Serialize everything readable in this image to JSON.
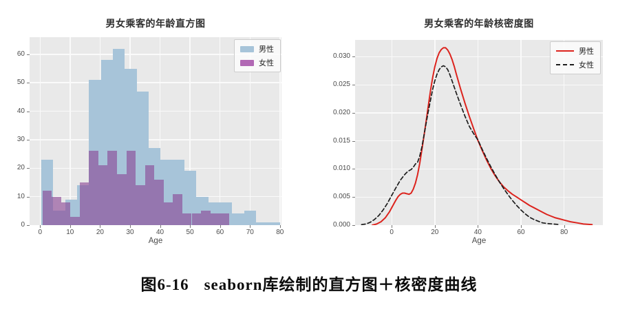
{
  "caption": {
    "number": "图6-16",
    "text": "seaborn库绘制的直方图＋核密度曲线"
  },
  "chart_data": [
    {
      "type": "histogram",
      "title": "男女乘客的年龄直方图",
      "xlabel": "Age",
      "ylabel": "",
      "xlim": [
        -3.5,
        80.5
      ],
      "ylim": [
        0,
        66
      ],
      "xticks": [
        0,
        10,
        20,
        30,
        40,
        50,
        60,
        70,
        80
      ],
      "xtick_labels": [
        "0",
        "10",
        "20",
        "30",
        "40",
        "50",
        "60",
        "70",
        "80"
      ],
      "ytick_vals": [
        0,
        10,
        20,
        30,
        40,
        50,
        60
      ],
      "ytick_labels": [
        "0",
        "10",
        "20",
        "30",
        "40",
        "50",
        "60"
      ],
      "grid": true,
      "legend_position": "upper right",
      "series": [
        {
          "name": "男性",
          "color": "#a7c4d9",
          "legend_color": "#a7c4d9",
          "bin_start": 0.42,
          "bin_width": 3.979,
          "counts": [
            23,
            5,
            9,
            14,
            51,
            58,
            62,
            55,
            47,
            27,
            23,
            23,
            19,
            10,
            8,
            8,
            4,
            5,
            1,
            1
          ]
        },
        {
          "name": "女性",
          "color": "rgba(139,69,148,0.62)",
          "legend_color": "#b168b4",
          "bin_start": 0.75,
          "bin_width": 3.1125,
          "counts": [
            12,
            10,
            8,
            3,
            15,
            26,
            21,
            26,
            18,
            26,
            14,
            21,
            16,
            8,
            11,
            4,
            4,
            5,
            4,
            4
          ]
        }
      ]
    },
    {
      "type": "line",
      "title": "男女乘客的年龄核密度图",
      "xlabel": "Age",
      "ylabel": "",
      "xlim": [
        -17,
        98
      ],
      "ylim": [
        0,
        0.033
      ],
      "xticks": [
        0,
        20,
        40,
        60,
        80
      ],
      "xtick_labels": [
        "0",
        "20",
        "40",
        "60",
        "80"
      ],
      "ytick_vals": [
        0,
        0.005,
        0.01,
        0.015,
        0.02,
        0.025,
        0.03
      ],
      "ytick_labels": [
        "0.000",
        "0.005",
        "0.010",
        "0.015",
        "0.020",
        "0.025",
        "0.030"
      ],
      "grid": true,
      "legend_position": "upper right",
      "series": [
        {
          "name": "男性",
          "color": "#dc231d",
          "dash": "solid",
          "points": [
            [
              -9,
              0.0
            ],
            [
              -7,
              0.0002
            ],
            [
              -5,
              0.0006
            ],
            [
              -3,
              0.0013
            ],
            [
              -1,
              0.0024
            ],
            [
              1,
              0.0038
            ],
            [
              2,
              0.0045
            ],
            [
              3,
              0.0051
            ],
            [
              4,
              0.0055
            ],
            [
              5,
              0.0057
            ],
            [
              6,
              0.0057
            ],
            [
              7,
              0.0056
            ],
            [
              8,
              0.0055
            ],
            [
              9,
              0.0057
            ],
            [
              10,
              0.0064
            ],
            [
              11,
              0.0075
            ],
            [
              12,
              0.009
            ],
            [
              13,
              0.011
            ],
            [
              14,
              0.0134
            ],
            [
              15,
              0.016
            ],
            [
              16,
              0.0186
            ],
            [
              17,
              0.0213
            ],
            [
              18,
              0.024
            ],
            [
              19,
              0.0263
            ],
            [
              20,
              0.0282
            ],
            [
              21,
              0.0297
            ],
            [
              22,
              0.0307
            ],
            [
              23,
              0.0313
            ],
            [
              24,
              0.0316
            ],
            [
              25,
              0.0316
            ],
            [
              26,
              0.0312
            ],
            [
              27,
              0.0305
            ],
            [
              28,
              0.0295
            ],
            [
              29,
              0.0283
            ],
            [
              30,
              0.0269
            ],
            [
              32,
              0.0242
            ],
            [
              34,
              0.0217
            ],
            [
              36,
              0.0194
            ],
            [
              38,
              0.0172
            ],
            [
              40,
              0.0151
            ],
            [
              42,
              0.0133
            ],
            [
              44,
              0.0116
            ],
            [
              46,
              0.0101
            ],
            [
              48,
              0.0088
            ],
            [
              50,
              0.0077
            ],
            [
              52,
              0.0068
            ],
            [
              54,
              0.0061
            ],
            [
              56,
              0.0055
            ],
            [
              58,
              0.005
            ],
            [
              60,
              0.0045
            ],
            [
              62,
              0.004
            ],
            [
              64,
              0.0035
            ],
            [
              66,
              0.0031
            ],
            [
              68,
              0.0027
            ],
            [
              70,
              0.0023
            ],
            [
              72,
              0.0019
            ],
            [
              74,
              0.0016
            ],
            [
              76,
              0.0013
            ],
            [
              78,
              0.0011
            ],
            [
              80,
              0.0009
            ],
            [
              83,
              0.0006
            ],
            [
              86,
              0.0004
            ],
            [
              89,
              0.0002
            ],
            [
              93,
              0.0001
            ]
          ]
        },
        {
          "name": "女性",
          "color": "#1c1c1c",
          "dash": "dashed",
          "points": [
            [
              -14,
              0.0001
            ],
            [
              -12,
              0.0002
            ],
            [
              -10,
              0.0005
            ],
            [
              -8,
              0.001
            ],
            [
              -6,
              0.0017
            ],
            [
              -4,
              0.0027
            ],
            [
              -2,
              0.0039
            ],
            [
              0,
              0.0053
            ],
            [
              2,
              0.0067
            ],
            [
              4,
              0.008
            ],
            [
              6,
              0.009
            ],
            [
              7,
              0.0094
            ],
            [
              8,
              0.0097
            ],
            [
              9,
              0.0099
            ],
            [
              10,
              0.0103
            ],
            [
              11,
              0.0109
            ],
            [
              12,
              0.0112
            ],
            [
              13,
              0.0123
            ],
            [
              14,
              0.0139
            ],
            [
              15,
              0.0161
            ],
            [
              16,
              0.0182
            ],
            [
              17,
              0.0203
            ],
            [
              18,
              0.0223
            ],
            [
              19,
              0.0242
            ],
            [
              20,
              0.0257
            ],
            [
              21,
              0.0269
            ],
            [
              22,
              0.0277
            ],
            [
              23,
              0.0282
            ],
            [
              24,
              0.0284
            ],
            [
              25,
              0.0282
            ],
            [
              26,
              0.0277
            ],
            [
              27,
              0.0268
            ],
            [
              28,
              0.0257
            ],
            [
              30,
              0.0235
            ],
            [
              32,
              0.0214
            ],
            [
              34,
              0.0194
            ],
            [
              36,
              0.0176
            ],
            [
              38,
              0.0163
            ],
            [
              40,
              0.0152
            ],
            [
              42,
              0.0135
            ],
            [
              44,
              0.0119
            ],
            [
              46,
              0.0104
            ],
            [
              48,
              0.009
            ],
            [
              50,
              0.0077
            ],
            [
              52,
              0.0065
            ],
            [
              54,
              0.0054
            ],
            [
              56,
              0.0044
            ],
            [
              58,
              0.0035
            ],
            [
              60,
              0.0027
            ],
            [
              62,
              0.002
            ],
            [
              64,
              0.0014
            ],
            [
              66,
              0.001
            ],
            [
              68,
              0.0007
            ],
            [
              70,
              0.0004
            ],
            [
              72,
              0.0003
            ],
            [
              75,
              0.0002
            ],
            [
              78,
              0.0001
            ]
          ]
        }
      ]
    }
  ]
}
